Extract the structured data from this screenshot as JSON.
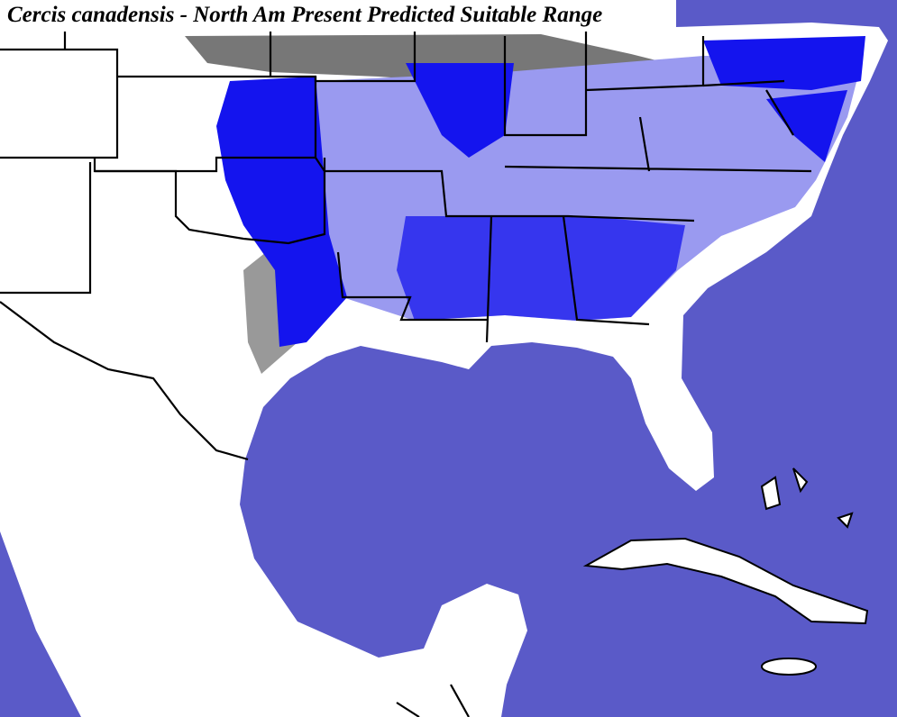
{
  "title": "Cercis canadensis - North Am Present Predicted Suitable Range"
}
